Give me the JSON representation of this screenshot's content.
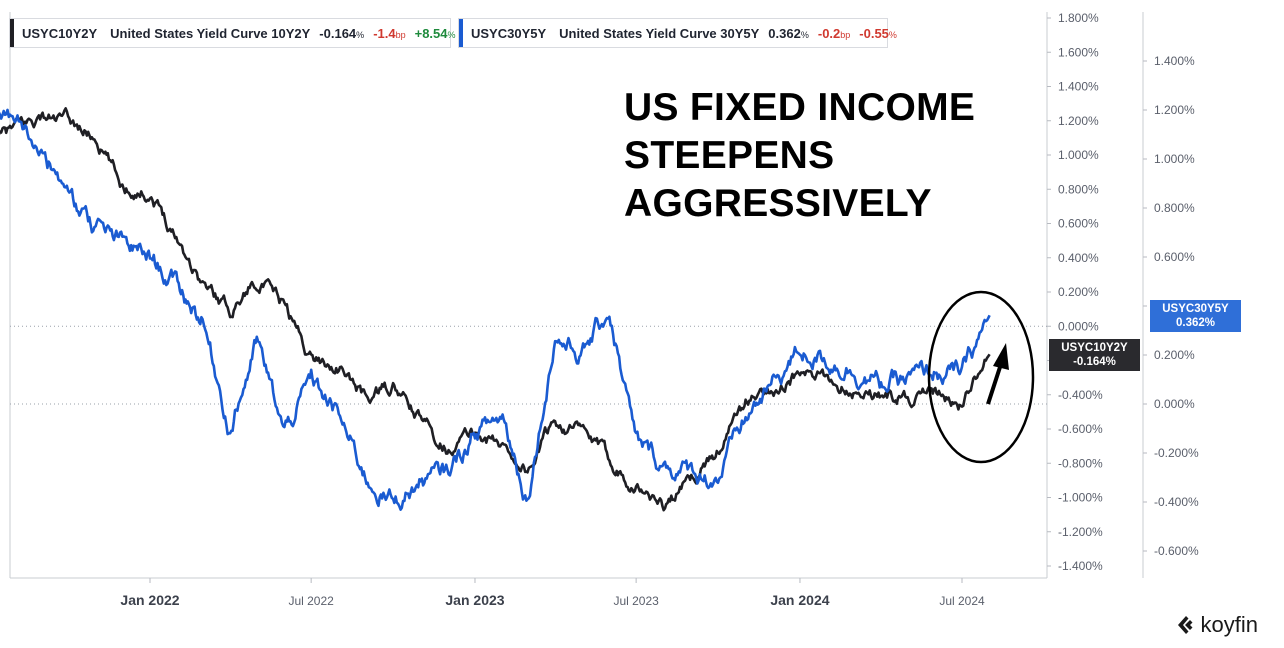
{
  "legend": [
    {
      "ticker": "USYC10Y2Y",
      "name": "United States Yield Curve 10Y2Y",
      "value": "-0.164",
      "unit": "%",
      "change_bp": "-1.4",
      "change_bp_unit": "bp",
      "change_pct": "+8.54",
      "change_pct_unit": "%",
      "color": "#1f1f24"
    },
    {
      "ticker": "USYC30Y5Y",
      "name": "United States Yield Curve 30Y5Y",
      "value": "0.362",
      "unit": "%",
      "change_bp": "-0.2",
      "change_bp_unit": "bp",
      "change_pct": "-0.55",
      "change_pct_unit": "%",
      "color": "#1a5bd1"
    }
  ],
  "headline": [
    "US FIXED INCOME",
    "STEEPENS",
    "AGGRESSIVELY"
  ],
  "tags": {
    "series_30y5y": {
      "line1": "USYC30Y5Y",
      "line2": "0.362%"
    },
    "series_10y2y": {
      "line1": "USYC10Y2Y",
      "line2": "-0.164%"
    }
  },
  "brand": "koyfin",
  "chart_data": {
    "type": "line",
    "x_tick_labels": [
      "Jan 2022",
      "Jul 2022",
      "Jan 2023",
      "Jul 2023",
      "Jan 2024",
      "Jul 2024"
    ],
    "left_axis": {
      "ylim": [
        -1.4,
        1.8
      ],
      "tick_labels": [
        "1.800%",
        "1.600%",
        "1.400%",
        "1.200%",
        "1.000%",
        "0.800%",
        "0.600%",
        "0.400%",
        "0.200%",
        "0.000%",
        "-0.200%",
        "-0.400%",
        "-0.600%",
        "-0.800%",
        "-1.000%",
        "-1.200%",
        "-1.400%"
      ]
    },
    "right_axis": {
      "ylim": [
        -0.6,
        1.4
      ],
      "tick_labels": [
        "1.400%",
        "1.200%",
        "1.000%",
        "0.800%",
        "0.600%",
        "0.400%",
        "0.200%",
        "0.000%",
        "-0.200%",
        "-0.400%",
        "-0.600%"
      ]
    },
    "series": [
      {
        "name": "USYC10Y2Y",
        "color": "#1f1f24",
        "axis": "left",
        "x": [
          "2021-07-01",
          "2021-08-01",
          "2021-09-01",
          "2021-10-01",
          "2021-11-01",
          "2021-12-01",
          "2022-01-01",
          "2022-02-01",
          "2022-03-01",
          "2022-04-01",
          "2022-05-01",
          "2022-06-01",
          "2022-07-01",
          "2022-08-01",
          "2022-09-01",
          "2022-10-01",
          "2022-11-01",
          "2022-12-01",
          "2023-01-01",
          "2023-02-01",
          "2023-03-01",
          "2023-04-01",
          "2023-05-01",
          "2023-06-01",
          "2023-07-01",
          "2023-08-01",
          "2023-09-01",
          "2023-10-01",
          "2023-11-01",
          "2023-12-01",
          "2024-01-01",
          "2024-02-01",
          "2024-03-01",
          "2024-04-01",
          "2024-05-01",
          "2024-06-01",
          "2024-07-01",
          "2024-08-01"
        ],
        "y": [
          1.05,
          1.15,
          1.22,
          1.2,
          1.1,
          0.82,
          0.78,
          0.52,
          0.25,
          0.1,
          0.28,
          0.12,
          -0.18,
          -0.24,
          -0.42,
          -0.35,
          -0.55,
          -0.7,
          -0.62,
          -0.7,
          -0.84,
          -0.55,
          -0.62,
          -0.78,
          -0.92,
          -1.05,
          -0.9,
          -0.72,
          -0.45,
          -0.36,
          -0.28,
          -0.32,
          -0.36,
          -0.4,
          -0.42,
          -0.4,
          -0.46,
          -0.164
        ]
      },
      {
        "name": "USYC30Y5Y",
        "color": "#1a5bd1",
        "axis": "right",
        "x": [
          "2021-07-01",
          "2021-08-01",
          "2021-09-01",
          "2021-10-01",
          "2021-11-01",
          "2021-12-01",
          "2022-01-01",
          "2022-02-01",
          "2022-03-01",
          "2022-04-01",
          "2022-05-01",
          "2022-06-01",
          "2022-07-01",
          "2022-08-01",
          "2022-09-01",
          "2022-10-01",
          "2022-11-01",
          "2022-12-01",
          "2023-01-01",
          "2023-02-01",
          "2023-03-01",
          "2023-04-01",
          "2023-05-01",
          "2023-06-01",
          "2023-07-01",
          "2023-08-01",
          "2023-09-01",
          "2023-10-01",
          "2023-11-01",
          "2023-12-01",
          "2024-01-01",
          "2024-02-01",
          "2024-03-01",
          "2024-04-01",
          "2024-05-01",
          "2024-06-01",
          "2024-07-01",
          "2024-08-01"
        ],
        "y": [
          1.2,
          1.15,
          1.05,
          0.85,
          0.72,
          0.65,
          0.6,
          0.48,
          0.35,
          -0.1,
          0.25,
          -0.12,
          0.1,
          -0.05,
          -0.3,
          -0.4,
          -0.32,
          -0.28,
          -0.12,
          -0.05,
          -0.38,
          0.28,
          0.2,
          0.38,
          -0.16,
          -0.25,
          -0.28,
          -0.3,
          -0.06,
          0.08,
          0.22,
          0.18,
          0.14,
          0.08,
          0.1,
          0.13,
          0.12,
          0.362
        ]
      }
    ]
  }
}
